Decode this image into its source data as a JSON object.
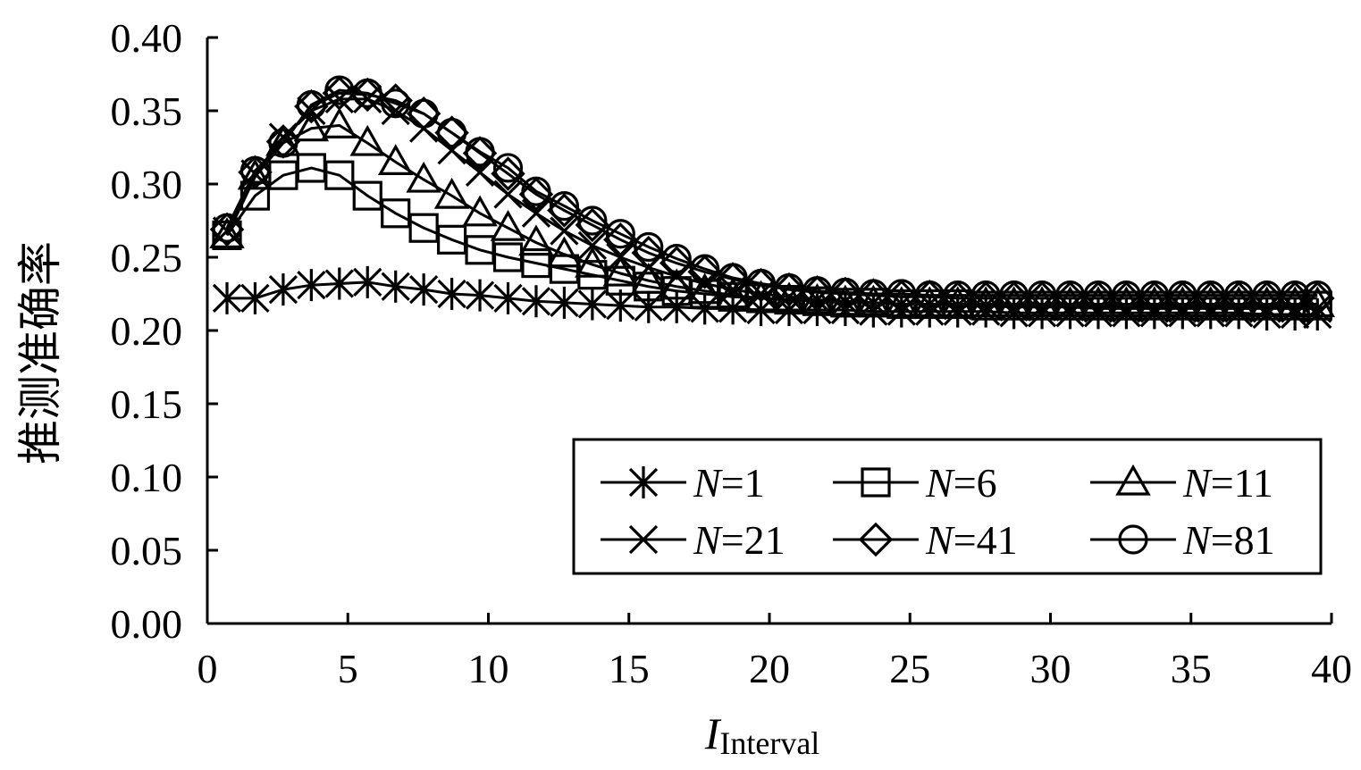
{
  "chart_data": {
    "type": "line",
    "x_axis": {
      "label_main": "I",
      "label_sub": "Interval",
      "range": [
        0,
        40
      ],
      "ticks": [
        0,
        5,
        10,
        15,
        20,
        25,
        30,
        35,
        40
      ]
    },
    "y_axis": {
      "label": "推测准确率",
      "range": [
        0,
        0.4
      ],
      "ticks": [
        "0.00",
        "0.05",
        "0.10",
        "0.15",
        "0.20",
        "0.25",
        "0.30",
        "0.35",
        "0.40"
      ]
    },
    "grid": false,
    "legend": {
      "position": "bottom-right",
      "columns": 3
    },
    "x": [
      0.7,
      1.7,
      2.7,
      3.7,
      4.7,
      5.7,
      6.7,
      7.7,
      8.7,
      9.7,
      10.7,
      11.7,
      12.7,
      13.7,
      14.7,
      15.7,
      16.7,
      17.7,
      18.7,
      19.7,
      20.7,
      21.7,
      22.7,
      23.7,
      24.7,
      25.7,
      26.7,
      27.7,
      28.7,
      29.7,
      30.7,
      31.7,
      32.7,
      33.7,
      34.7,
      35.7,
      36.7,
      37.7,
      38.7,
      39.5
    ],
    "series": [
      {
        "name_italic": "N",
        "name_rest": "=1",
        "marker": "asterisk",
        "values": [
          0.222,
          0.222,
          0.228,
          0.231,
          0.232,
          0.233,
          0.23,
          0.228,
          0.225,
          0.224,
          0.222,
          0.22,
          0.219,
          0.218,
          0.217,
          0.216,
          0.216,
          0.215,
          0.215,
          0.214,
          0.214,
          0.214,
          0.214,
          0.213,
          0.213,
          0.213,
          0.213,
          0.213,
          0.212,
          0.212,
          0.212,
          0.212,
          0.212,
          0.212,
          0.212,
          0.212,
          0.212,
          0.211,
          0.211,
          0.211
        ]
      },
      {
        "name_italic": "N",
        "name_rest": "=6",
        "marker": "square",
        "values": [
          0.265,
          0.292,
          0.306,
          0.311,
          0.306,
          0.292,
          0.28,
          0.27,
          0.262,
          0.255,
          0.25,
          0.246,
          0.242,
          0.238,
          0.234,
          0.23,
          0.227,
          0.225,
          0.223,
          0.222,
          0.221,
          0.22,
          0.219,
          0.219,
          0.218,
          0.218,
          0.218,
          0.217,
          0.217,
          0.217,
          0.217,
          0.217,
          0.217,
          0.217,
          0.217,
          0.217,
          0.217,
          0.217,
          0.217,
          0.217
        ]
      },
      {
        "name_italic": "N",
        "name_rest": "=11",
        "marker": "triangle",
        "values": [
          0.265,
          0.305,
          0.328,
          0.338,
          0.34,
          0.328,
          0.315,
          0.303,
          0.292,
          0.28,
          0.27,
          0.26,
          0.252,
          0.245,
          0.239,
          0.234,
          0.23,
          0.227,
          0.224,
          0.222,
          0.221,
          0.22,
          0.219,
          0.219,
          0.218,
          0.218,
          0.218,
          0.218,
          0.218,
          0.218,
          0.218,
          0.218,
          0.218,
          0.218,
          0.218,
          0.218,
          0.218,
          0.218,
          0.218,
          0.218
        ]
      },
      {
        "name_italic": "N",
        "name_rest": "=21",
        "marker": "x",
        "values": [
          0.268,
          0.307,
          0.332,
          0.35,
          0.358,
          0.358,
          0.35,
          0.338,
          0.323,
          0.308,
          0.293,
          0.28,
          0.268,
          0.258,
          0.25,
          0.243,
          0.237,
          0.232,
          0.228,
          0.225,
          0.223,
          0.221,
          0.22,
          0.219,
          0.218,
          0.218,
          0.217,
          0.217,
          0.216,
          0.216,
          0.216,
          0.215,
          0.215,
          0.215,
          0.215,
          0.215,
          0.215,
          0.215,
          0.215,
          0.215
        ]
      },
      {
        "name_italic": "N",
        "name_rest": "=41",
        "marker": "diamond",
        "values": [
          0.269,
          0.308,
          0.329,
          0.353,
          0.362,
          0.361,
          0.357,
          0.348,
          0.335,
          0.321,
          0.307,
          0.293,
          0.282,
          0.272,
          0.262,
          0.253,
          0.246,
          0.24,
          0.235,
          0.231,
          0.228,
          0.226,
          0.225,
          0.224,
          0.223,
          0.223,
          0.222,
          0.222,
          0.222,
          0.222,
          0.222,
          0.222,
          0.222,
          0.222,
          0.222,
          0.222,
          0.222,
          0.222,
          0.222,
          0.222
        ]
      },
      {
        "name_italic": "N",
        "name_rest": "=81",
        "marker": "circle",
        "values": [
          0.27,
          0.309,
          0.328,
          0.354,
          0.364,
          0.362,
          0.355,
          0.348,
          0.335,
          0.322,
          0.311,
          0.295,
          0.285,
          0.275,
          0.266,
          0.257,
          0.249,
          0.242,
          0.236,
          0.232,
          0.229,
          0.227,
          0.226,
          0.225,
          0.225,
          0.224,
          0.224,
          0.224,
          0.224,
          0.224,
          0.224,
          0.224,
          0.224,
          0.224,
          0.224,
          0.224,
          0.224,
          0.224,
          0.224,
          0.224
        ]
      }
    ]
  }
}
